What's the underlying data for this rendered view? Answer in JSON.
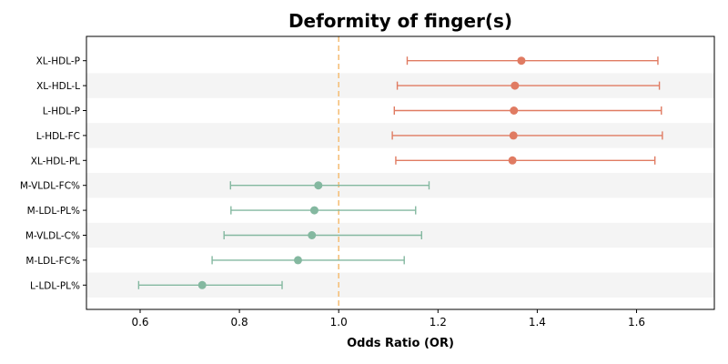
{
  "chart_data": {
    "type": "forest",
    "title": "Deformity of finger(s)",
    "xlabel": "Odds Ratio (OR)",
    "xlim": [
      0.49,
      1.755
    ],
    "xticks": [
      0.6,
      0.8,
      1.0,
      1.2,
      1.4,
      1.6
    ],
    "xtick_labels": [
      "0.6",
      "0.8",
      "1.0",
      "1.2",
      "1.4",
      "1.6"
    ],
    "reference_line": 1.0,
    "reference_color": "#f5c07a",
    "colors": {
      "above": "#e07b62",
      "below": "#84b8a0"
    },
    "stripe_color": "#f4f4f4",
    "items": [
      {
        "label": "XL-HDL-P",
        "or": 1.368,
        "ci_low": 1.138,
        "ci_high": 1.643,
        "group": "above"
      },
      {
        "label": "XL-HDL-L",
        "or": 1.355,
        "ci_low": 1.118,
        "ci_high": 1.646,
        "group": "above"
      },
      {
        "label": "L-HDL-P",
        "or": 1.353,
        "ci_low": 1.112,
        "ci_high": 1.65,
        "group": "above"
      },
      {
        "label": "L-HDL-FC",
        "or": 1.352,
        "ci_low": 1.108,
        "ci_high": 1.652,
        "group": "above"
      },
      {
        "label": "XL-HDL-PL",
        "or": 1.35,
        "ci_low": 1.115,
        "ci_high": 1.637,
        "group": "above"
      },
      {
        "label": "M-VLDL-FC%",
        "or": 0.959,
        "ci_low": 0.782,
        "ci_high": 1.182,
        "group": "below"
      },
      {
        "label": "M-LDL-PL%",
        "or": 0.951,
        "ci_low": 0.783,
        "ci_high": 1.155,
        "group": "below"
      },
      {
        "label": "M-VLDL-C%",
        "or": 0.946,
        "ci_low": 0.769,
        "ci_high": 1.167,
        "group": "below"
      },
      {
        "label": "M-LDL-FC%",
        "or": 0.918,
        "ci_low": 0.745,
        "ci_high": 1.132,
        "group": "below"
      },
      {
        "label": "L-LDL-PL%",
        "or": 0.725,
        "ci_low": 0.597,
        "ci_high": 0.886,
        "group": "below"
      }
    ]
  }
}
